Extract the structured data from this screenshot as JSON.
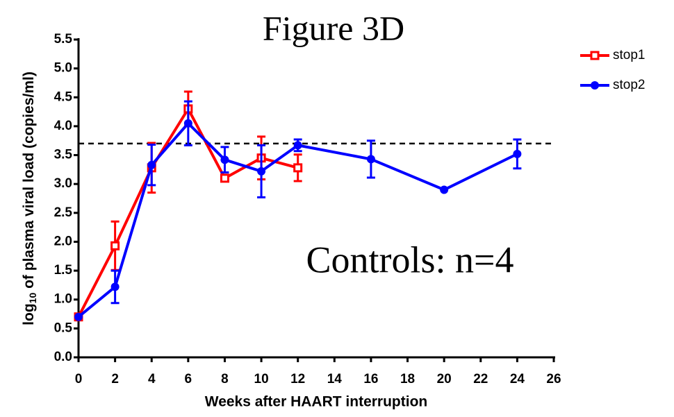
{
  "chart_data": {
    "type": "line",
    "title": "Figure 3D",
    "annotation": "Controls: n=4",
    "xlabel": "Weeks after HAART interruption",
    "ylabel_parts": [
      "log",
      "10",
      " of plasma viral load (copies/ml)"
    ],
    "xlim": [
      0,
      26
    ],
    "xticks": [
      0,
      2,
      4,
      6,
      8,
      10,
      12,
      14,
      16,
      18,
      20,
      22,
      24,
      26
    ],
    "ylim": [
      0,
      5.5
    ],
    "yticks": [
      {
        "value": 0,
        "label": "0.0"
      },
      0.5,
      {
        "value": 1,
        "label": "1.0"
      },
      1.5,
      {
        "value": 2,
        "label": "2.0"
      },
      2.5,
      {
        "value": 3,
        "label": "3.0"
      },
      3.5,
      {
        "value": 4,
        "label": "4.0"
      },
      4.5,
      {
        "value": 5,
        "label": "5.0"
      },
      5.5
    ],
    "hline": 3.7,
    "legend": "top-right",
    "series": [
      {
        "name": "stop1",
        "color": "#ff0000",
        "marker": "square",
        "x": [
          0,
          2,
          4,
          6,
          8,
          10,
          12
        ],
        "values": [
          0.7,
          1.93,
          3.28,
          4.3,
          3.1,
          3.45,
          3.28
        ],
        "errors": [
          0,
          0.42,
          0.43,
          0.3,
          0.05,
          0.37,
          0.23
        ]
      },
      {
        "name": "stop2",
        "color": "#0000ff",
        "marker": "circle",
        "x": [
          0,
          2,
          4,
          6,
          8,
          10,
          12,
          16,
          20,
          24
        ],
        "values": [
          0.7,
          1.22,
          3.33,
          4.05,
          3.42,
          3.22,
          3.67,
          3.43,
          2.9,
          3.52
        ],
        "errors": [
          0,
          0.28,
          0.35,
          0.38,
          0.22,
          0.45,
          0.1,
          0.32,
          0,
          0.25
        ]
      }
    ]
  }
}
